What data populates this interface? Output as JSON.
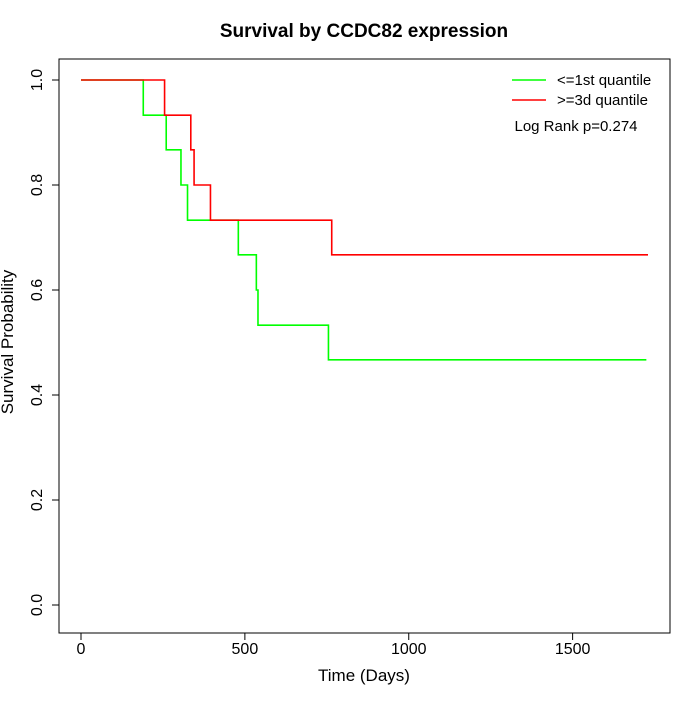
{
  "chart_data": {
    "type": "line",
    "subtype": "kaplan-meier-step",
    "title": "Survival by CCDC82 expression",
    "xlabel": "Time (Days)",
    "ylabel": "Survival Probability",
    "xlim": [
      0,
      1730
    ],
    "ylim": [
      0,
      1.0
    ],
    "xticks": [
      0,
      500,
      1000,
      1500
    ],
    "yticks": [
      0.0,
      0.2,
      0.4,
      0.6,
      0.8,
      1.0
    ],
    "xtick_labels": [
      "0",
      "500",
      "1000",
      "1500"
    ],
    "ytick_labels": [
      "0.0",
      "0.2",
      "0.4",
      "0.6",
      "0.8",
      "1.0"
    ],
    "grid": false,
    "legend_position": "top-right",
    "annotation": "Log Rank p=0.274",
    "series": [
      {
        "name": "<=1st quantile",
        "color": "#00ff00",
        "x": [
          0,
          190,
          260,
          305,
          325,
          480,
          535,
          540,
          755,
          1725
        ],
        "y": [
          1.0,
          0.933,
          0.867,
          0.8,
          0.733,
          0.667,
          0.6,
          0.533,
          0.467,
          0.467
        ]
      },
      {
        "name": ">=3d quantile",
        "color": "#ff0000",
        "x": [
          0,
          255,
          335,
          345,
          395,
          765,
          1730
        ],
        "y": [
          1.0,
          0.933,
          0.867,
          0.8,
          0.733,
          0.667,
          0.667
        ]
      }
    ]
  }
}
